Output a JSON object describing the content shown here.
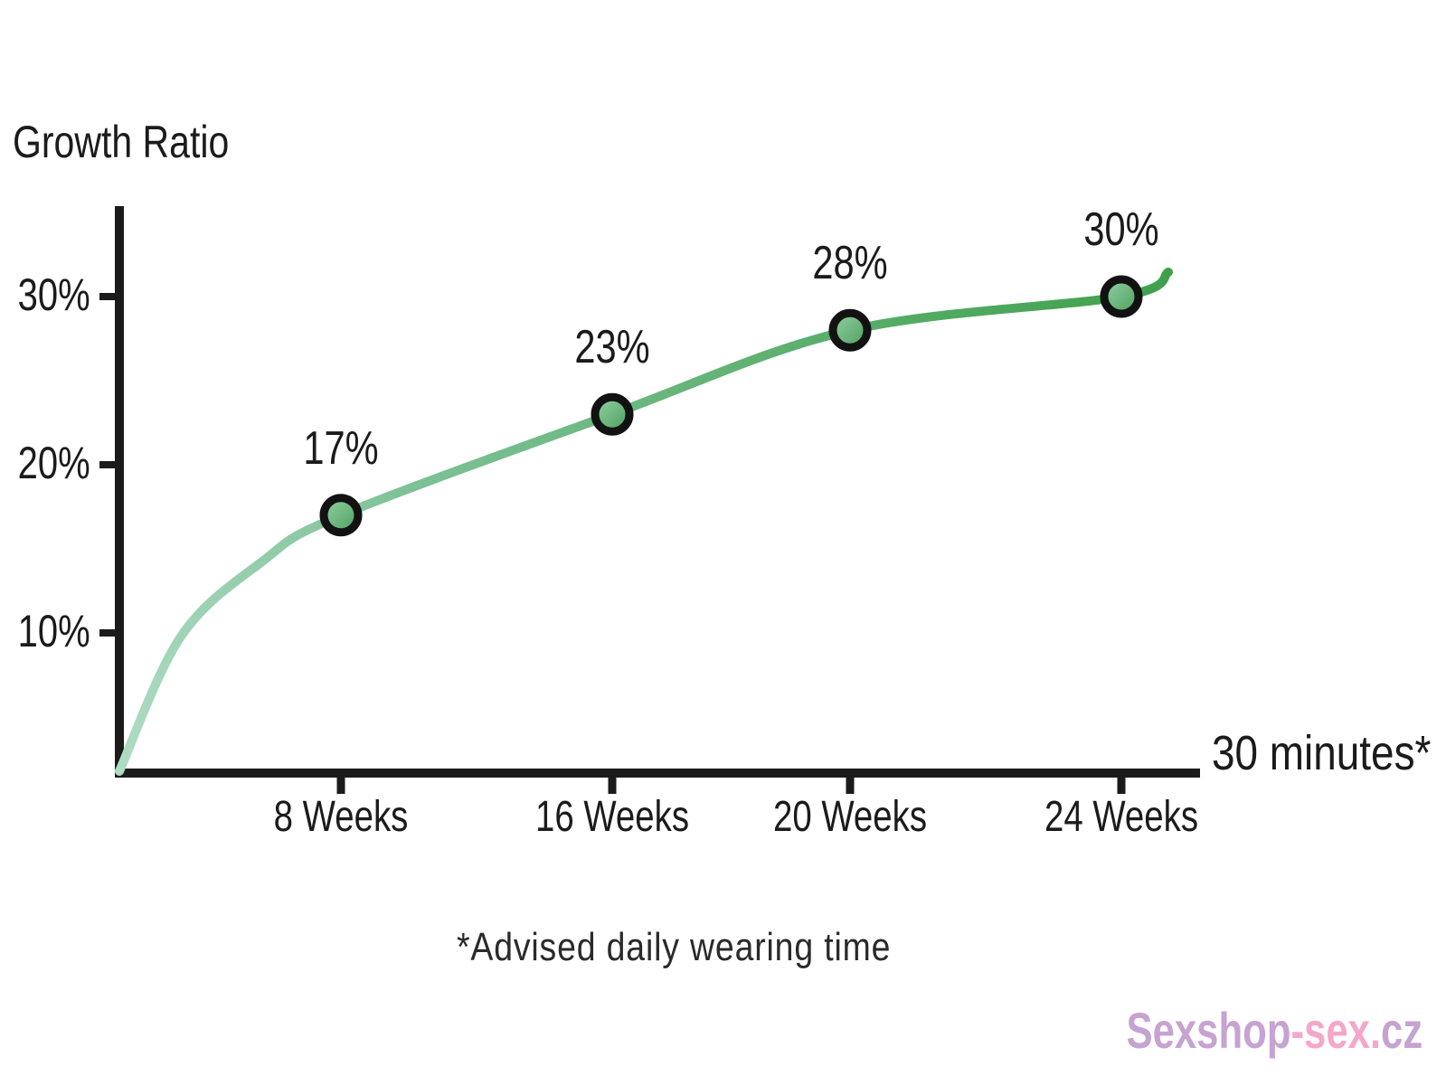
{
  "chart_data": {
    "type": "line",
    "title": "Growth Ratio",
    "categories": [
      "8 Weeks",
      "16 Weeks",
      "20 Weeks",
      "24 Weeks"
    ],
    "values": [
      17,
      23,
      28,
      30
    ],
    "point_labels": [
      "17%",
      "23%",
      "28%",
      "30%"
    ],
    "y_ticks": [
      "10%",
      "20%",
      "30%"
    ],
    "y_tick_values": [
      10,
      20,
      30
    ],
    "ylim": [
      0,
      34
    ],
    "xlabel": "30 minutes*",
    "ylabel": "Growth Ratio",
    "footnote": "*Advised daily wearing time",
    "grid": "off",
    "legend": "none",
    "colors": {
      "axis": "#1b1b1b",
      "text": "#1b1b1b",
      "curve_start": "#aedcc4",
      "curve_mid": "#7cc094",
      "curve_end": "#3fa04c",
      "marker_fill_light": "#93d2a4",
      "marker_fill_dark": "#4d9d5d",
      "marker_ring": "#121212",
      "watermark_mauve": "#c6a3d1",
      "watermark_pink": "#f6a6cb"
    }
  },
  "watermark": {
    "part1": "Sexshop",
    "part2": "-sex.",
    "part3": "cz"
  }
}
